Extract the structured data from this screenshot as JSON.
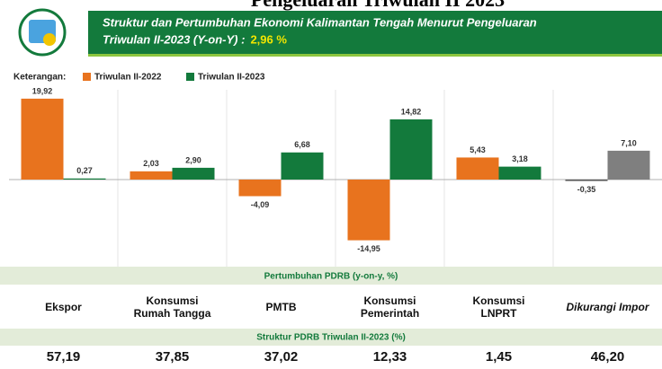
{
  "chart_data": {
    "type": "bar",
    "header_title": "Pengeluaran Triwulan II 2023",
    "title_lines": [
      "Struktur dan Pertumbuhan Ekonomi Kalimantan Tengah Menurut Pengeluaran",
      "Triwulan II-2023 (Y-on-Y) :"
    ],
    "title_highlight": "2,96 %",
    "legend_label": "Keterangan:",
    "categories": [
      "Ekspor",
      "Konsumsi Rumah Tangga",
      "PMTB",
      "Konsumsi Pemerintah",
      "Konsumsi LNPRT",
      "Dikurangi Impor"
    ],
    "series": [
      {
        "name": "Triwulan II-2022",
        "color": "#e8731e",
        "colors": [
          "#e8731e",
          "#e8731e",
          "#e8731e",
          "#e8731e",
          "#e8731e",
          "#595959"
        ],
        "values": [
          19.92,
          2.03,
          -4.09,
          -14.95,
          5.43,
          -0.35
        ],
        "value_labels": [
          "19,92",
          "2,03",
          "-4,09",
          "-14,95",
          "5,43",
          "-0,35"
        ]
      },
      {
        "name": "Triwulan II-2023",
        "color": "#137a3c",
        "colors": [
          "#137a3c",
          "#137a3c",
          "#137a3c",
          "#137a3c",
          "#137a3c",
          "#7f7f7f"
        ],
        "values": [
          0.27,
          2.9,
          6.68,
          14.82,
          3.18,
          7.1
        ],
        "value_labels": [
          "0,27",
          "2,90",
          "6,68",
          "14,82",
          "3,18",
          "7,10"
        ]
      }
    ],
    "ylim": [
      -21,
      21
    ],
    "growth_row_label": "Pertumbuhan PDRB (y-on-y, %)",
    "structure_row_label": "Struktur PDRB Triwulan II-2023 (%)",
    "structure_values": [
      "57,19",
      "37,85",
      "37,02",
      "12,33",
      "1,45",
      "46,20"
    ]
  }
}
